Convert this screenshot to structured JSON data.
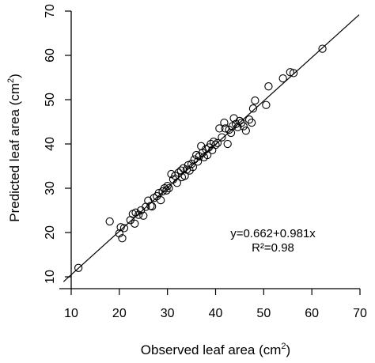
{
  "chart_data": {
    "type": "scatter",
    "title": "",
    "xlabel": "Observed leaf area (cm",
    "xlabel_sup": "2",
    "xlabel_close": ")",
    "ylabel": "Predicted leaf area (cm",
    "ylabel_sup": "2",
    "ylabel_close": ")",
    "xlim": [
      10,
      70
    ],
    "ylim": [
      10,
      70
    ],
    "xticks": [
      "10",
      "20",
      "30",
      "40",
      "50",
      "60",
      "70"
    ],
    "yticks": [
      "10",
      "20",
      "30",
      "40",
      "50",
      "60",
      "70"
    ],
    "grid": false,
    "box": "open-L",
    "annotation": {
      "equation": "y=0.662+0.981x",
      "r2": "R²=0.98"
    },
    "fit_line": {
      "intercept": 0.662,
      "slope": 0.981
    },
    "points": [
      [
        11.5,
        12.0
      ],
      [
        18.0,
        22.5
      ],
      [
        20.0,
        19.8
      ],
      [
        20.3,
        21.2
      ],
      [
        20.6,
        18.7
      ],
      [
        21.0,
        21.0
      ],
      [
        22.3,
        22.8
      ],
      [
        22.8,
        24.2
      ],
      [
        23.2,
        22.0
      ],
      [
        23.4,
        24.5
      ],
      [
        24.0,
        24.0
      ],
      [
        24.5,
        25.0
      ],
      [
        25.0,
        23.8
      ],
      [
        25.5,
        25.8
      ],
      [
        26.0,
        27.2
      ],
      [
        26.5,
        26.0
      ],
      [
        26.8,
        25.9
      ],
      [
        27.2,
        27.8
      ],
      [
        27.8,
        28.2
      ],
      [
        28.2,
        28.9
      ],
      [
        28.6,
        27.3
      ],
      [
        29.0,
        29.3
      ],
      [
        29.4,
        30.0
      ],
      [
        29.8,
        29.5
      ],
      [
        30.0,
        30.5
      ],
      [
        30.3,
        30.0
      ],
      [
        30.8,
        33.2
      ],
      [
        31.2,
        32.0
      ],
      [
        31.6,
        32.8
      ],
      [
        32.0,
        31.2
      ],
      [
        32.3,
        33.5
      ],
      [
        32.8,
        34.0
      ],
      [
        33.0,
        32.5
      ],
      [
        33.3,
        34.5
      ],
      [
        33.6,
        32.8
      ],
      [
        34.0,
        34.2
      ],
      [
        34.3,
        35.2
      ],
      [
        34.6,
        34.0
      ],
      [
        35.0,
        35.5
      ],
      [
        35.3,
        34.8
      ],
      [
        35.6,
        36.5
      ],
      [
        36.0,
        37.5
      ],
      [
        36.3,
        36.0
      ],
      [
        36.6,
        37.2
      ],
      [
        37.0,
        39.5
      ],
      [
        37.3,
        38.0
      ],
      [
        37.6,
        37.0
      ],
      [
        38.0,
        38.8
      ],
      [
        38.3,
        37.5
      ],
      [
        38.6,
        39.2
      ],
      [
        39.0,
        40.0
      ],
      [
        39.3,
        38.6
      ],
      [
        39.6,
        40.5
      ],
      [
        40.0,
        39.8
      ],
      [
        40.4,
        40.2
      ],
      [
        40.8,
        43.5
      ],
      [
        41.3,
        41.5
      ],
      [
        41.8,
        44.8
      ],
      [
        42.0,
        43.5
      ],
      [
        42.5,
        40.0
      ],
      [
        42.8,
        43.2
      ],
      [
        43.2,
        42.5
      ],
      [
        43.5,
        44.0
      ],
      [
        43.8,
        45.8
      ],
      [
        44.2,
        44.5
      ],
      [
        44.6,
        43.8
      ],
      [
        45.0,
        45.2
      ],
      [
        45.4,
        44.8
      ],
      [
        45.8,
        44.0
      ],
      [
        46.3,
        43.0
      ],
      [
        47.0,
        45.5
      ],
      [
        47.5,
        44.8
      ],
      [
        47.8,
        48.0
      ],
      [
        48.2,
        49.8
      ],
      [
        50.5,
        48.8
      ],
      [
        51.0,
        53.0
      ],
      [
        54.0,
        54.8
      ],
      [
        55.5,
        56.2
      ],
      [
        56.2,
        56.0
      ],
      [
        62.2,
        61.5
      ]
    ]
  }
}
